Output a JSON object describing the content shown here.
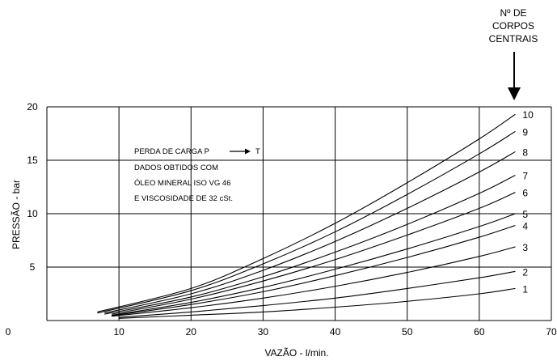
{
  "chart_data": {
    "type": "line",
    "title": "",
    "xlabel": "VAZÃO - l/min.",
    "ylabel": "PRESSÃO - bar",
    "xlim": [
      0,
      70
    ],
    "ylim": [
      0,
      20
    ],
    "x_ticks": [
      "0",
      "10",
      "20",
      "30",
      "40",
      "50",
      "60",
      "70"
    ],
    "y_ticks": [
      "0",
      "5",
      "10",
      "15",
      "20"
    ],
    "grid": true,
    "side_heading": [
      "Nº DE",
      "CORPOS",
      "CENTRAIS"
    ],
    "annotation_lines": [
      "PERDA DE CARGA P",
      "T",
      "DADOS OBTIDOS COM",
      "ÓLEO MINERAL ISO VG 46",
      "E VISCOSIDADE DE 32 cSt."
    ],
    "series": [
      {
        "name": "1",
        "x": [
          10,
          20,
          30,
          40,
          50,
          60,
          65
        ],
        "y": [
          0.2,
          0.5,
          0.8,
          1.25,
          1.8,
          2.5,
          3.0
        ]
      },
      {
        "name": "2",
        "x": [
          10,
          20,
          30,
          40,
          50,
          60,
          65
        ],
        "y": [
          0.3,
          0.8,
          1.4,
          2.1,
          3.0,
          4.0,
          4.6
        ]
      },
      {
        "name": "3",
        "x": [
          9,
          20,
          30,
          40,
          50,
          60,
          65
        ],
        "y": [
          0.4,
          1.2,
          2.1,
          3.2,
          4.5,
          6.0,
          6.9
        ]
      },
      {
        "name": "4",
        "x": [
          9,
          20,
          30,
          40,
          50,
          60,
          65
        ],
        "y": [
          0.45,
          1.5,
          2.7,
          4.2,
          5.9,
          7.8,
          8.9
        ]
      },
      {
        "name": "5",
        "x": [
          9,
          20,
          30,
          40,
          50,
          60,
          65
        ],
        "y": [
          0.5,
          1.7,
          3.1,
          4.8,
          6.7,
          8.8,
          10.0
        ]
      },
      {
        "name": "6",
        "x": [
          9,
          20,
          30,
          40,
          50,
          60,
          65
        ],
        "y": [
          0.6,
          2.0,
          3.7,
          5.7,
          8.0,
          10.5,
          12.0
        ]
      },
      {
        "name": "7",
        "x": [
          8,
          20,
          30,
          40,
          50,
          60,
          65
        ],
        "y": [
          0.6,
          2.2,
          4.1,
          6.4,
          9.0,
          11.9,
          13.6
        ]
      },
      {
        "name": "8",
        "x": [
          8,
          20,
          30,
          40,
          50,
          60,
          65
        ],
        "y": [
          0.7,
          2.5,
          4.7,
          7.4,
          10.5,
          13.9,
          15.8
        ]
      },
      {
        "name": "9",
        "x": [
          7,
          20,
          30,
          40,
          50,
          60,
          65
        ],
        "y": [
          0.7,
          2.8,
          5.3,
          8.3,
          11.8,
          15.6,
          17.7
        ]
      },
      {
        "name": "10",
        "x": [
          7,
          20,
          30,
          40,
          50,
          60,
          65
        ],
        "y": [
          0.8,
          3.0,
          5.8,
          9.1,
          12.9,
          17.0,
          19.3
        ]
      }
    ]
  },
  "style": {
    "line_color": "#000000",
    "grid_color": "#000000",
    "background": "#ffffff"
  }
}
